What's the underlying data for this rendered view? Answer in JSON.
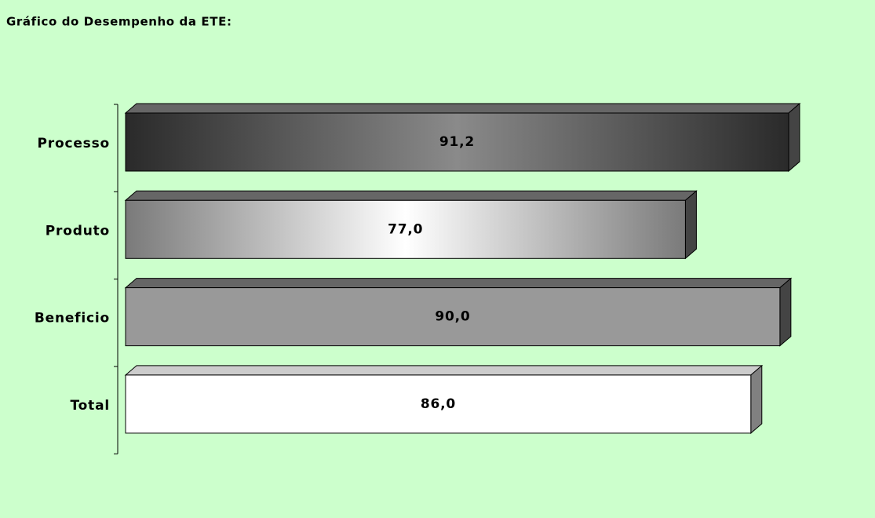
{
  "chart_data": {
    "type": "bar3d_horizontal",
    "title": "Gráfico do Desempenho da ETE:",
    "categories": [
      "Processo",
      "Produto",
      "Beneficio",
      "Total"
    ],
    "values": [
      91.2,
      77.0,
      90.0,
      86.0
    ],
    "value_labels": [
      "91,2",
      "77,0",
      "90,0",
      "86,0"
    ],
    "colors": [
      "#2a2a2a",
      "#7a7a7a",
      "#999999",
      "#ffffff"
    ],
    "highlight_colors": [
      "#8a8a8a",
      "#ffffff",
      "#999999",
      "#ffffff"
    ],
    "xlim": [
      0,
      100
    ],
    "background": "#ccffcc"
  }
}
